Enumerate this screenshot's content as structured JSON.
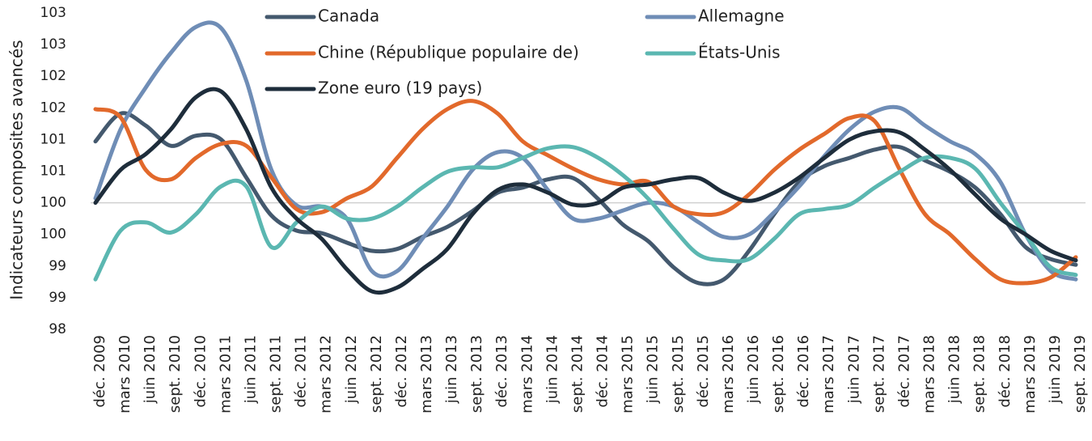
{
  "chart_data": {
    "type": "line",
    "y_label": "Indicateurs composites avancés",
    "categories": [
      "déc. 2009",
      "mars 2010",
      "juin 2010",
      "sept. 2010",
      "déc. 2010",
      "mars 2011",
      "juin 2011",
      "sept. 2011",
      "déc. 2011",
      "mars 2012",
      "juin 2012",
      "sept. 2012",
      "déc. 2012",
      "mars 2013",
      "juin 2013",
      "sept. 2013",
      "déc. 2013",
      "mars 2014",
      "juin 2014",
      "sept. 2014",
      "déc. 2014",
      "mars 2015",
      "juin 2015",
      "sept. 2015",
      "déc. 2015",
      "mars 2016",
      "juin 2016",
      "sept. 2016",
      "déc. 2016",
      "mars 2017",
      "juin 2017",
      "sept. 2017",
      "déc. 2017",
      "mars 2018",
      "juin 2018",
      "sept. 2018",
      "déc. 2018",
      "mars 2019",
      "juin 2019",
      "sept. 2019"
    ],
    "series": [
      {
        "name": "Canada",
        "color": "#44596e",
        "values": [
          100.97,
          101.41,
          101.22,
          100.9,
          101.06,
          101,
          100.4,
          99.8,
          99.56,
          99.52,
          99.37,
          99.24,
          99.27,
          99.46,
          99.62,
          99.87,
          100.16,
          100.24,
          100.37,
          100.39,
          100.06,
          99.65,
          99.39,
          98.98,
          98.73,
          98.79,
          99.24,
          99.82,
          100.33,
          100.58,
          100.71,
          100.84,
          100.88,
          100.67,
          100.49,
          100.24,
          99.82,
          99.3,
          99.11,
          99.02
        ]
      },
      {
        "name": "Allemagne",
        "color": "#6f8db6",
        "values": [
          100.07,
          101.16,
          101.82,
          102.37,
          102.78,
          102.76,
          101.93,
          100.52,
          99.96,
          99.94,
          99.75,
          98.92,
          98.92,
          99.43,
          99.94,
          100.52,
          100.8,
          100.71,
          100.2,
          99.75,
          99.75,
          99.88,
          100,
          99.94,
          99.69,
          99.46,
          99.5,
          99.85,
          100.26,
          100.74,
          101.16,
          101.44,
          101.5,
          101.22,
          100.97,
          100.77,
          100.33,
          99.5,
          98.92,
          98.79
        ]
      },
      {
        "name": "Chine (République populaire de)",
        "color": "#e2692b",
        "values": [
          101.48,
          101.35,
          100.52,
          100.37,
          100.71,
          100.93,
          100.9,
          100.4,
          99.9,
          99.85,
          100.07,
          100.26,
          100.71,
          101.16,
          101.48,
          101.61,
          101.41,
          100.97,
          100.75,
          100.54,
          100.37,
          100.29,
          100.33,
          99.94,
          99.82,
          99.85,
          100.13,
          100.52,
          100.84,
          101.09,
          101.34,
          101.29,
          100.52,
          99.82,
          99.5,
          99.11,
          98.79,
          98.73,
          98.82,
          99.14
        ]
      },
      {
        "name": "États-Unis",
        "color": "#5bb7b1",
        "values": [
          98.79,
          99.56,
          99.69,
          99.53,
          99.82,
          100.26,
          100.26,
          99.3,
          99.69,
          99.94,
          99.75,
          99.75,
          99.94,
          100.24,
          100.49,
          100.56,
          100.56,
          100.71,
          100.86,
          100.88,
          100.71,
          100.43,
          100.06,
          99.59,
          99.18,
          99.09,
          99.11,
          99.43,
          99.82,
          99.9,
          99.97,
          100.24,
          100.49,
          100.71,
          100.71,
          100.54,
          100,
          99.5,
          98.98,
          98.86
        ]
      },
      {
        "name": "Zone euro (19 pays)",
        "color": "#1e2d3b",
        "values": [
          100,
          100.52,
          100.77,
          101.16,
          101.67,
          101.76,
          101.16,
          100.24,
          99.75,
          99.43,
          98.95,
          98.6,
          98.66,
          98.95,
          99.27,
          99.82,
          100.2,
          100.29,
          100.16,
          99.97,
          100,
          100.24,
          100.29,
          100.37,
          100.39,
          100.16,
          100.03,
          100.16,
          100.4,
          100.71,
          101,
          101.13,
          101.11,
          100.84,
          100.52,
          100.13,
          99.75,
          99.5,
          99.24,
          99.09
        ]
      }
    ],
    "ylim": [
      98,
      103
    ],
    "yticks": [
      98,
      {
        "value": 98.5,
        "label": "99"
      },
      99,
      {
        "value": 99.5,
        "label": "100"
      },
      100,
      {
        "value": 100.5,
        "label": "101"
      },
      101,
      {
        "value": 101.5,
        "label": "102"
      },
      102,
      {
        "value": 102.5,
        "label": "103"
      },
      103
    ],
    "reference_line": 100,
    "legend": "top"
  }
}
